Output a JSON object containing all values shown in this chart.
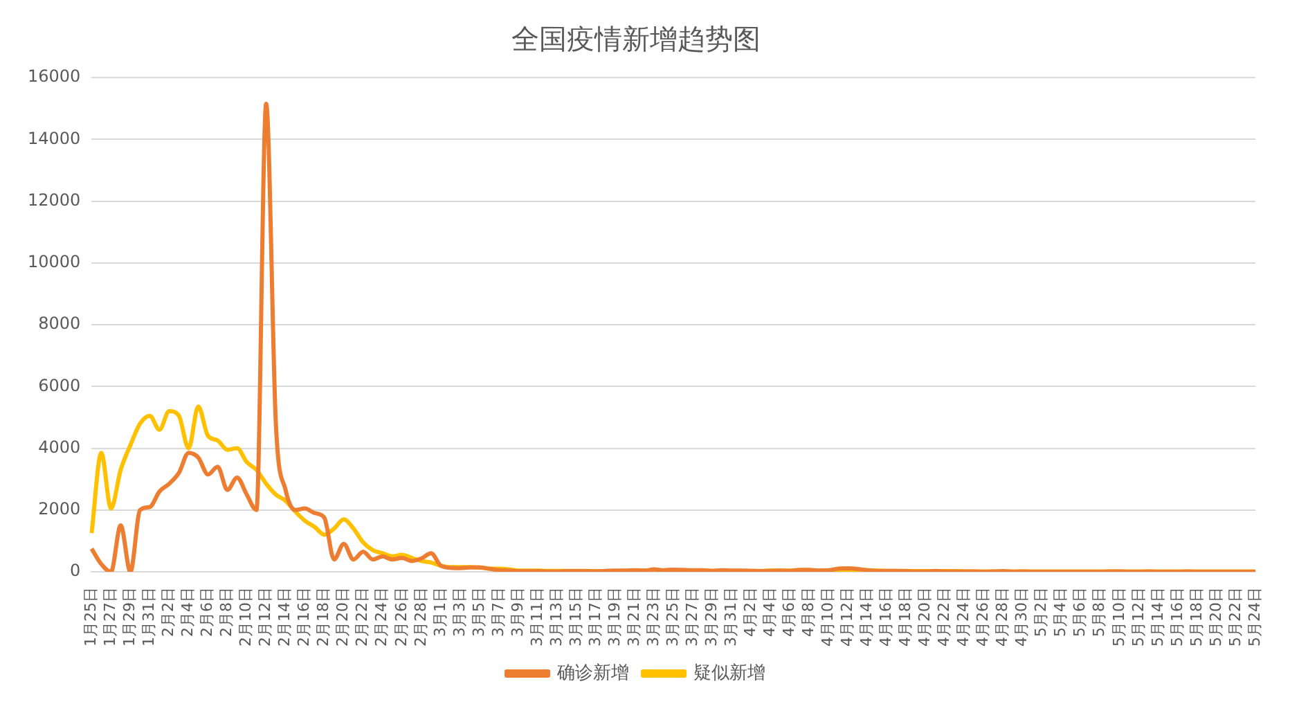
{
  "chart_data": {
    "type": "line",
    "title": "全国疫情新增趋势图",
    "categories": [
      "1月25日",
      null,
      "1月27日",
      null,
      "1月29日",
      null,
      "1月31日",
      null,
      "2月2日",
      null,
      "2月4日",
      null,
      "2月6日",
      null,
      "2月8日",
      null,
      "2月10日",
      null,
      "2月12日",
      null,
      "2月14日",
      null,
      "2月16日",
      null,
      "2月18日",
      null,
      "2月20日",
      null,
      "2月22日",
      null,
      "2月24日",
      null,
      "2月26日",
      null,
      "2月28日",
      null,
      "3月1日",
      null,
      "3月3日",
      null,
      "3月5日",
      null,
      "3月7日",
      null,
      "3月9日",
      null,
      "3月11日",
      null,
      "3月13日",
      null,
      "3月15日",
      null,
      "3月17日",
      null,
      "3月19日",
      null,
      "3月21日",
      null,
      "3月23日",
      null,
      "3月25日",
      null,
      "3月27日",
      null,
      "3月29日",
      null,
      "3月31日",
      null,
      "4月2日",
      null,
      "4月4日",
      null,
      "4月6日",
      null,
      "4月8日",
      null,
      "4月10日",
      null,
      "4月12日",
      null,
      "4月14日",
      null,
      "4月16日",
      null,
      "4月18日",
      null,
      "4月20日",
      null,
      "4月22日",
      null,
      "4月24日",
      null,
      "4月26日",
      null,
      "4月28日",
      null,
      "4月30日",
      null,
      "5月2日",
      null,
      "5月4日",
      null,
      "5月6日",
      null,
      "5月8日",
      null,
      "5月10日",
      null,
      "5月12日",
      null,
      "5月14日",
      null,
      "5月16日",
      null,
      "5月18日",
      null,
      "5月20日",
      null,
      "5月22日",
      null,
      "5月24日"
    ],
    "series": [
      {
        "name": "确诊新增",
        "color": "#ed7d31",
        "values": [
          750,
          250,
          0,
          1500,
          0,
          2000,
          2100,
          2600,
          2850,
          3200,
          3850,
          3700,
          3150,
          3400,
          2650,
          3050,
          2500,
          2000,
          15150,
          4800,
          2650,
          2000,
          2050,
          1900,
          1750,
          400,
          900,
          400,
          650,
          400,
          500,
          400,
          450,
          350,
          430,
          600,
          200,
          130,
          120,
          140,
          140,
          100,
          50,
          40,
          20,
          20,
          20,
          10,
          10,
          20,
          20,
          20,
          10,
          30,
          40,
          40,
          50,
          40,
          80,
          50,
          70,
          60,
          50,
          50,
          30,
          50,
          40,
          40,
          30,
          20,
          30,
          40,
          30,
          60,
          60,
          40,
          50,
          100,
          110,
          90,
          50,
          30,
          30,
          30,
          20,
          10,
          10,
          30,
          10,
          10,
          10,
          10,
          0,
          10,
          20,
          0,
          10,
          0,
          0,
          0,
          0,
          0,
          0,
          0,
          0,
          10,
          10,
          0,
          0,
          10,
          0,
          0,
          0,
          10,
          0,
          0,
          0,
          0,
          0,
          0,
          0
        ]
      },
      {
        "name": "疑似新增",
        "color": "#ffc000",
        "values": [
          1250,
          3850,
          2050,
          3300,
          4100,
          4800,
          5050,
          4600,
          5200,
          5050,
          4000,
          5350,
          4400,
          4250,
          3950,
          4000,
          3550,
          3300,
          2850,
          2500,
          2300,
          1950,
          1650,
          1450,
          1200,
          1400,
          1700,
          1400,
          950,
          700,
          600,
          500,
          550,
          450,
          350,
          300,
          200,
          150,
          150,
          150,
          140,
          100,
          100,
          80,
          40,
          40,
          40,
          30,
          30,
          30,
          30,
          30,
          20,
          20,
          20,
          30,
          30,
          40,
          40,
          30,
          30,
          30,
          30,
          40,
          30,
          30,
          30,
          30,
          30,
          30,
          40,
          40,
          40,
          50,
          50,
          40,
          40,
          40,
          50,
          60,
          50,
          40,
          30,
          30,
          30,
          20,
          20,
          20,
          20,
          20,
          10,
          10,
          10,
          10,
          10,
          10,
          10,
          10,
          10,
          10,
          10,
          10,
          10,
          10,
          10,
          10,
          10,
          10,
          10,
          10,
          10,
          10,
          10,
          10,
          10,
          10,
          10,
          10,
          10,
          10,
          10
        ]
      }
    ],
    "ylim": [
      0,
      16000
    ],
    "yticks": [
      0,
      2000,
      4000,
      6000,
      8000,
      10000,
      12000,
      14000,
      16000
    ],
    "grid": "y",
    "legend": "bottom",
    "marker": "none",
    "line_style": "solid"
  }
}
